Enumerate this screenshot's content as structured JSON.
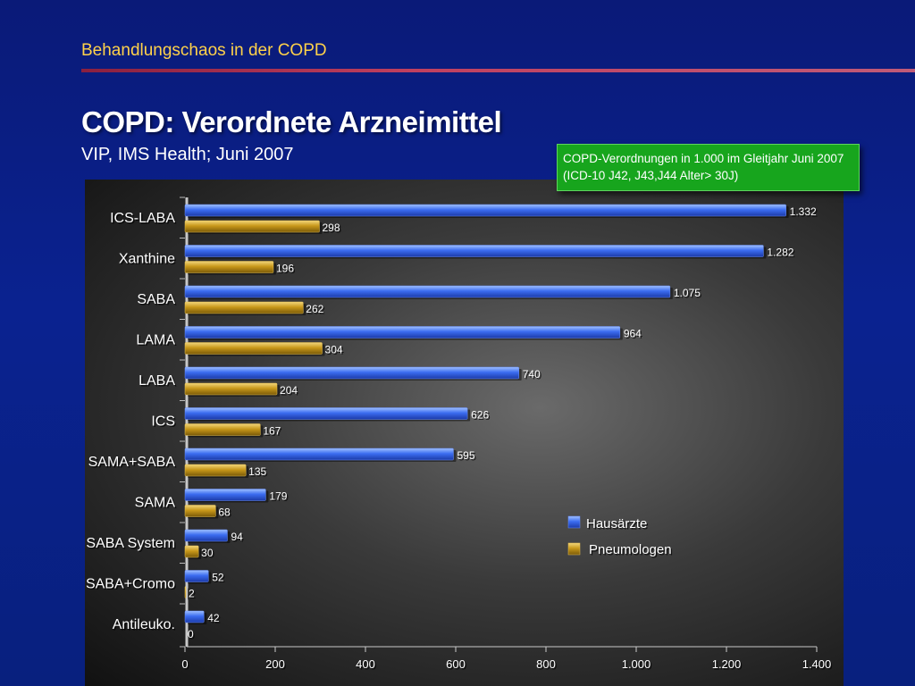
{
  "header": {
    "section": "Behandlungschaos in der COPD",
    "title": "COPD: Verordnete Arzneimittel",
    "source": "VIP, IMS Health; Juni 2007"
  },
  "note": {
    "line1": "COPD-Verordnungen in 1.000 im Gleitjahr Juni 2007",
    "line2": "(ICD-10 J42, J43,J44 Alter> 30J)"
  },
  "colors": {
    "hausaerzte": "#3b6cf0",
    "pneumologen": "#c8981a"
  },
  "chart_data": {
    "type": "bar",
    "orientation": "horizontal",
    "categories": [
      "ICS-LABA",
      "Xanthine",
      "SABA",
      "LAMA",
      "LABA",
      "ICS",
      "SAMA+SABA",
      "SAMA",
      "SABA System",
      "SABA+Cromo",
      "Antileuko."
    ],
    "series": [
      {
        "name": "Hausärzte",
        "values": [
          1332,
          1282,
          1075,
          964,
          740,
          626,
          595,
          179,
          94,
          52,
          42
        ],
        "labels": [
          "1.332",
          "1.282",
          "1.075",
          "964",
          "740",
          "626",
          "595",
          "179",
          "94",
          "52",
          "42"
        ]
      },
      {
        "name": "Pneumologen",
        "values": [
          298,
          196,
          262,
          304,
          204,
          167,
          135,
          68,
          30,
          2,
          0
        ],
        "labels": [
          "298",
          "196",
          "262",
          "304",
          "204",
          "167",
          "135",
          "68",
          "30",
          "2",
          "0"
        ]
      }
    ],
    "xlim": [
      0,
      1400
    ],
    "xticks": [
      0,
      200,
      400,
      600,
      800,
      1000,
      1200,
      1400
    ],
    "xtick_labels": [
      "0",
      "200",
      "400",
      "600",
      "800",
      "1.000",
      "1.200",
      "1.400"
    ],
    "legend_position": "lower-right",
    "grid": false
  }
}
